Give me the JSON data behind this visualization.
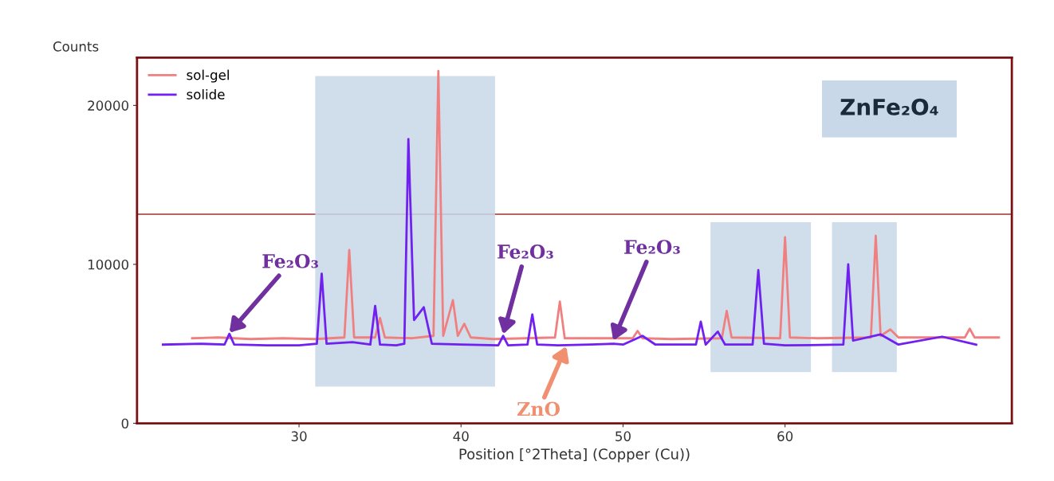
{
  "chart_data": {
    "type": "line",
    "ylabel": "Counts",
    "xlabel": "Position [°2Theta] (Copper (Cu))",
    "xlim": [
      20,
      74
    ],
    "xticks": [
      30,
      40,
      50,
      60
    ],
    "ylim": [
      0,
      23000
    ],
    "yticks": [
      0,
      10000,
      20000
    ],
    "legend": "top left",
    "grid": false,
    "line_style": "solid",
    "marker": "none",
    "series": [
      {
        "name": "sol-gel",
        "color": "#f08080",
        "x": [
          23.4,
          25,
          27,
          29,
          31,
          32.8,
          33.1,
          33.4,
          34.7,
          35.0,
          35.3,
          37,
          38.3,
          38.6,
          38.9,
          39.5,
          39.8,
          40.2,
          40.6,
          42,
          44,
          45.8,
          46.1,
          46.4,
          48,
          50.6,
          50.9,
          51.2,
          53,
          56.1,
          56.4,
          56.7,
          59.7,
          60.0,
          60.3,
          62,
          65.3,
          65.6,
          65.9,
          66.5,
          67,
          69,
          71.1,
          71.4,
          71.7,
          73.2
        ],
        "values": [
          5350,
          5400,
          5300,
          5350,
          5300,
          5400,
          10900,
          5400,
          5400,
          6620,
          5400,
          5350,
          5500,
          22160,
          5500,
          7750,
          5500,
          6260,
          5400,
          5300,
          5350,
          5400,
          7660,
          5350,
          5350,
          5350,
          5810,
          5350,
          5300,
          5350,
          7070,
          5400,
          5350,
          11710,
          5400,
          5350,
          5400,
          11800,
          5500,
          5900,
          5400,
          5400,
          5400,
          5950,
          5400,
          5400
        ]
      },
      {
        "name": "solide",
        "color": "#7020f0",
        "x": [
          21.6,
          24,
          25.4,
          25.7,
          26,
          28,
          30,
          31.1,
          31.4,
          31.7,
          33.3,
          34.4,
          34.7,
          35,
          36,
          36.5,
          36.75,
          37.1,
          37.7,
          38.2,
          40,
          42.3,
          42.6,
          42.9,
          44.1,
          44.4,
          44.7,
          46,
          48,
          49.4,
          50,
          51.2,
          52,
          54.5,
          54.8,
          55.1,
          55.85,
          56.3,
          58,
          58.35,
          58.7,
          60,
          63.6,
          63.9,
          64.2,
          65.9,
          67,
          69.7,
          71.8
        ],
        "values": [
          4950,
          5000,
          4950,
          5630,
          4950,
          4900,
          4900,
          5000,
          9410,
          5000,
          5100,
          4950,
          7390,
          4950,
          4900,
          5000,
          17880,
          6500,
          7300,
          5000,
          4950,
          4900,
          5500,
          4900,
          4950,
          6850,
          4950,
          4900,
          4950,
          5000,
          4950,
          5500,
          4950,
          4950,
          6400,
          4950,
          5770,
          4950,
          4950,
          9640,
          5000,
          4900,
          4950,
          10000,
          5200,
          5590,
          4950,
          5450,
          4950
        ]
      }
    ],
    "ref_lines": [
      {
        "axis": "y",
        "value": 13150,
        "color": "#a03030"
      }
    ],
    "bands": [
      {
        "axis": "x",
        "from": 31.0,
        "to": 42.1,
        "color": "#c8d8e8"
      },
      {
        "axis": "x",
        "from": 55.4,
        "to": 61.6,
        "color": "#c8d8e8"
      },
      {
        "axis": "x",
        "from": 62.9,
        "to": 66.9,
        "color": "#c8d8e8"
      }
    ],
    "annotations": [
      {
        "text": "Fe₂O₃",
        "x": 25.7,
        "y": 5700
      },
      {
        "text": "Fe₂O₃",
        "x": 42.6,
        "y": 5600
      },
      {
        "text": "Fe₂O₃",
        "x": 49.4,
        "y": 5200
      },
      {
        "text": "ZnO",
        "x": 46.5,
        "y": 4850
      },
      "ZnFe₂O₄"
    ]
  }
}
